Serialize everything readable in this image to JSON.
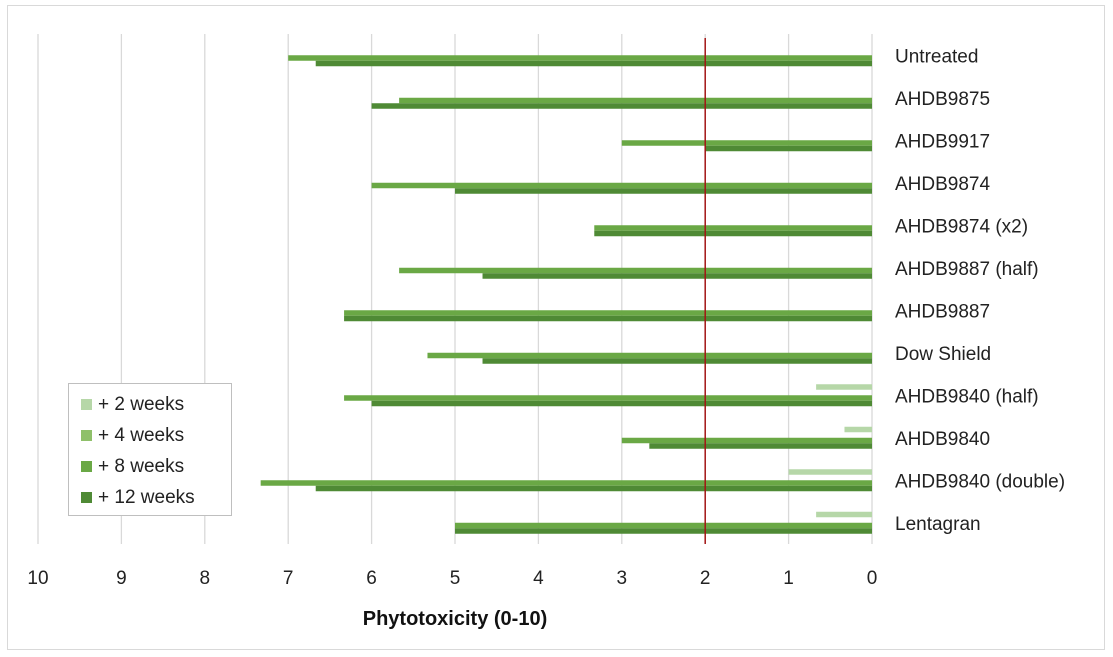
{
  "chart_data": {
    "type": "bar",
    "orientation": "horizontal",
    "xaxis_reversed": true,
    "xlabel": "Phytotoxicity (0-10)",
    "xlim": [
      0,
      10
    ],
    "xticks": [
      "10",
      "9",
      "8",
      "7",
      "6",
      "5",
      "4",
      "3",
      "2",
      "1",
      "0"
    ],
    "grid": true,
    "legend_position": "left-bottom",
    "reference_line": {
      "x": 2,
      "color": "#a31515"
    },
    "categories": [
      "Untreated",
      "AHDB9875",
      "AHDB9917",
      "AHDB9874",
      "AHDB9874 (x2)",
      "AHDB9887 (half)",
      "AHDB9887",
      "Dow Shield",
      "AHDB9840 (half)",
      "AHDB9840",
      "AHDB9840 (double)",
      "Lentagran"
    ],
    "series": [
      {
        "name": "+ 2 weeks",
        "color": "#b6d7a8",
        "values": [
          0,
          0,
          0,
          0,
          0,
          0,
          0,
          0,
          0.67,
          0.33,
          1.0,
          0.67
        ]
      },
      {
        "name": "+ 4 weeks",
        "color": "#8fc06a",
        "values": [
          0,
          0,
          0,
          0,
          0,
          0,
          0,
          0,
          0,
          0,
          0,
          0
        ]
      },
      {
        "name": "+ 8 weeks",
        "color": "#6aa845",
        "values": [
          7.0,
          5.67,
          3.0,
          6.0,
          3.33,
          5.67,
          6.33,
          5.33,
          6.33,
          3.0,
          7.33,
          5.0
        ]
      },
      {
        "name": "+ 12 weeks",
        "color": "#4f8a35",
        "values": [
          6.67,
          6.0,
          2.0,
          5.0,
          3.33,
          4.67,
          6.33,
          4.67,
          6.0,
          2.67,
          6.67,
          5.0
        ]
      }
    ]
  }
}
